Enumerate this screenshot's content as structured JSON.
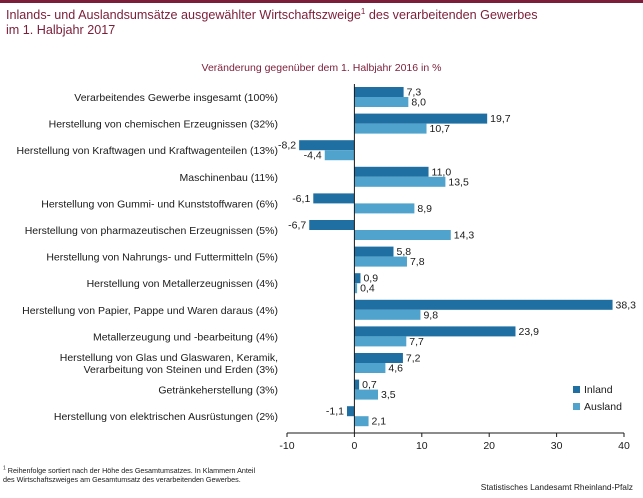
{
  "header": {
    "title_line1_main": "Inlands- und Auslandsumsätze ausgewählter Wirtschaftszweige",
    "title_line1_sup": "1",
    "title_line1_end": " des verarbeitenden Gewerbes",
    "title_line2": "im 1. Halbjahr 2017",
    "subtitle": "Veränderung gegenüber dem 1. Halbjahr 2016  in %"
  },
  "chart_data": {
    "type": "bar",
    "orientation": "horizontal",
    "categories": [
      [
        "Verarbeitendes Gewerbe insgesamt (100%)"
      ],
      [
        "Herstellung von chemischen Erzeugnissen (32%)"
      ],
      [
        "Herstellung von Kraftwagen und Kraftwagenteilen (13%)"
      ],
      [
        "Maschinenbau (11%)"
      ],
      [
        "Herstellung von Gummi- und Kunststoffwaren (6%)"
      ],
      [
        "Herstellung von pharmazeutischen Erzeugnissen (5%)"
      ],
      [
        "Herstellung von Nahrungs- und Futtermitteln (5%)"
      ],
      [
        "Herstellung von Metallerzeugnissen (4%)"
      ],
      [
        "Herstellung von Papier, Pappe und Waren daraus (4%)"
      ],
      [
        "Metallerzeugung und -bearbeitung (4%)"
      ],
      [
        "Herstellung von Glas und Glaswaren, Keramik,",
        "Verarbeitung von Steinen und Erden (3%)"
      ],
      [
        "Getränkeherstellung (3%)"
      ],
      [
        "Herstellung von elektrischen Ausrüstungen (2%)"
      ]
    ],
    "series": [
      {
        "name": "Inland",
        "color": "#1f6fa3",
        "values": [
          7.3,
          19.7,
          -8.2,
          11.0,
          -6.1,
          -6.7,
          5.8,
          0.9,
          38.3,
          23.9,
          7.2,
          0.7,
          -1.1
        ],
        "labels": [
          "7,3",
          "19,7",
          "-8,2",
          "11,0",
          "-6,1",
          "-6,7",
          "5,8",
          "0,9",
          "38,3",
          "23,9",
          "7,2",
          "0,7",
          "-1,1"
        ]
      },
      {
        "name": "Ausland",
        "color": "#4fa3cc",
        "values": [
          8.0,
          10.7,
          -4.4,
          13.5,
          8.9,
          14.3,
          7.8,
          0.4,
          9.8,
          7.7,
          4.6,
          3.5,
          2.1
        ],
        "labels": [
          "8,0",
          "10,7",
          "-4,4",
          "13,5",
          "8,9",
          "14,3",
          "7,8",
          "0,4",
          "9,8",
          "7,7",
          "4,6",
          "3,5",
          "2,1"
        ]
      }
    ],
    "xlim": [
      -10,
      40
    ],
    "xticks": [
      -10,
      0,
      10,
      20,
      30,
      40
    ],
    "grid": false,
    "legend_position": "bottom-right"
  },
  "footer": {
    "footnote_sup": "1",
    "footnote_text": " Reihenfolge sortiert nach der Höhe des Gesamtumsatzes. In Klammern Anteil des Wirtschaftszweiges am Gesamtumsatz des verarbeitenden Gewerbes.",
    "source": "Statistisches Landesamt Rheinland-Pfalz"
  }
}
